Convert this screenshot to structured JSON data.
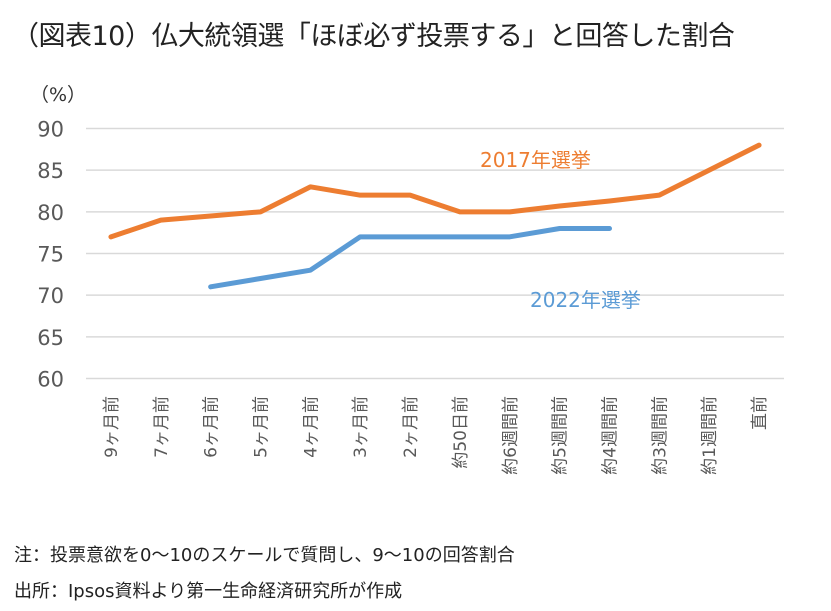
{
  "title": "（図表10）仏大統領選「ほぼ必ず投票する」と回答した割合",
  "unit_label": "（%）",
  "notes": {
    "note": "注：投票意欲を0〜10のスケールで質問し、9〜10の回答割合",
    "source": "出所：Ipsos資料より第一生命経済研究所が作成"
  },
  "colors": {
    "series_2017": "#ED7D31",
    "series_2022": "#5B9BD5",
    "grid": "#D9D9D9",
    "tick_text": "#595959"
  },
  "chart_data": {
    "type": "line",
    "title": "（図表10）仏大統領選「ほぼ必ず投票する」と回答した割合",
    "xlabel": "",
    "ylabel": "（%）",
    "ylim": [
      60,
      90
    ],
    "yticks": [
      60,
      65,
      70,
      75,
      80,
      85,
      90
    ],
    "grid": true,
    "legend": "inline-labels",
    "categories": [
      "9ヶ月前",
      "7ヶ月前",
      "6ヶ月前",
      "5ヶ月前",
      "4ヶ月前",
      "3ヶ月前",
      "2ヶ月前",
      "約50日前",
      "約6週間前",
      "約5週間前",
      "約4週間前",
      "約3週間前",
      "約1週間前",
      "直前"
    ],
    "series": [
      {
        "name": "2017年選挙",
        "color": "#ED7D31",
        "values": [
          77,
          79,
          79.5,
          80,
          83,
          82,
          82,
          80,
          80,
          80.7,
          81.3,
          82,
          85,
          88
        ]
      },
      {
        "name": "2022年選挙",
        "color": "#5B9BD5",
        "values": [
          null,
          null,
          71,
          72,
          73,
          77,
          77,
          77,
          77,
          78,
          78,
          null,
          null,
          null
        ]
      }
    ]
  }
}
